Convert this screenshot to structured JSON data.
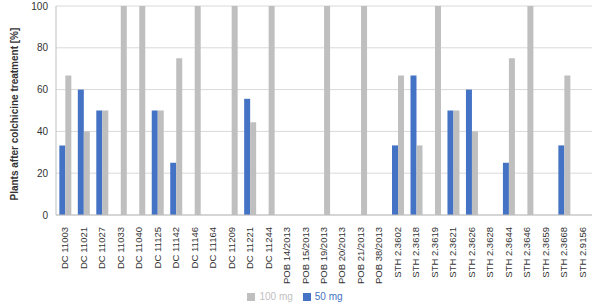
{
  "chart_data": {
    "type": "bar",
    "y_label": "Plants after colchicine treatment [%]",
    "categories": [
      "DC 11003",
      "DC 11021",
      "DC 11027",
      "DC 11033",
      "DC 11040",
      "DC 11125",
      "DC 11142",
      "DC 11146",
      "DC 11164",
      "DC 11209",
      "DC 11221",
      "DC 11244",
      "POB 14/2013",
      "POB 15/2013",
      "POB 19/2013",
      "POB 20/2013",
      "POB 21/2013",
      "POB 38/2013",
      "STH 2.3602",
      "STH 2.3618",
      "STH 2.3619",
      "STH 2.3621",
      "STH 2.3626",
      "STH 2.3628",
      "STH 2.3644",
      "STH 2.3646",
      "STH 2.3659",
      "STH 2.3668",
      "STH 2.9156"
    ],
    "series": [
      {
        "name": "50 mg",
        "color": "#4472c4",
        "values": [
          33.3,
          60,
          50,
          0,
          0,
          50,
          25,
          0,
          0,
          0,
          55.6,
          0,
          0,
          0,
          0,
          0,
          0,
          0,
          33.3,
          66.7,
          0,
          50,
          60,
          0,
          25,
          0,
          0,
          33.3,
          0
        ]
      },
      {
        "name": "100 mg",
        "color": "#bfbfbf",
        "values": [
          66.7,
          40,
          50,
          100,
          100,
          50,
          75,
          100,
          0,
          100,
          44.4,
          100,
          0,
          0,
          100,
          0,
          100,
          0,
          66.7,
          33.3,
          100,
          50,
          40,
          0,
          75,
          100,
          0,
          66.7,
          0
        ]
      }
    ],
    "ylim": [
      0,
      100
    ],
    "yticks": [
      0,
      20,
      40,
      60,
      80,
      100
    ],
    "grid": true,
    "legend": "bottom"
  }
}
